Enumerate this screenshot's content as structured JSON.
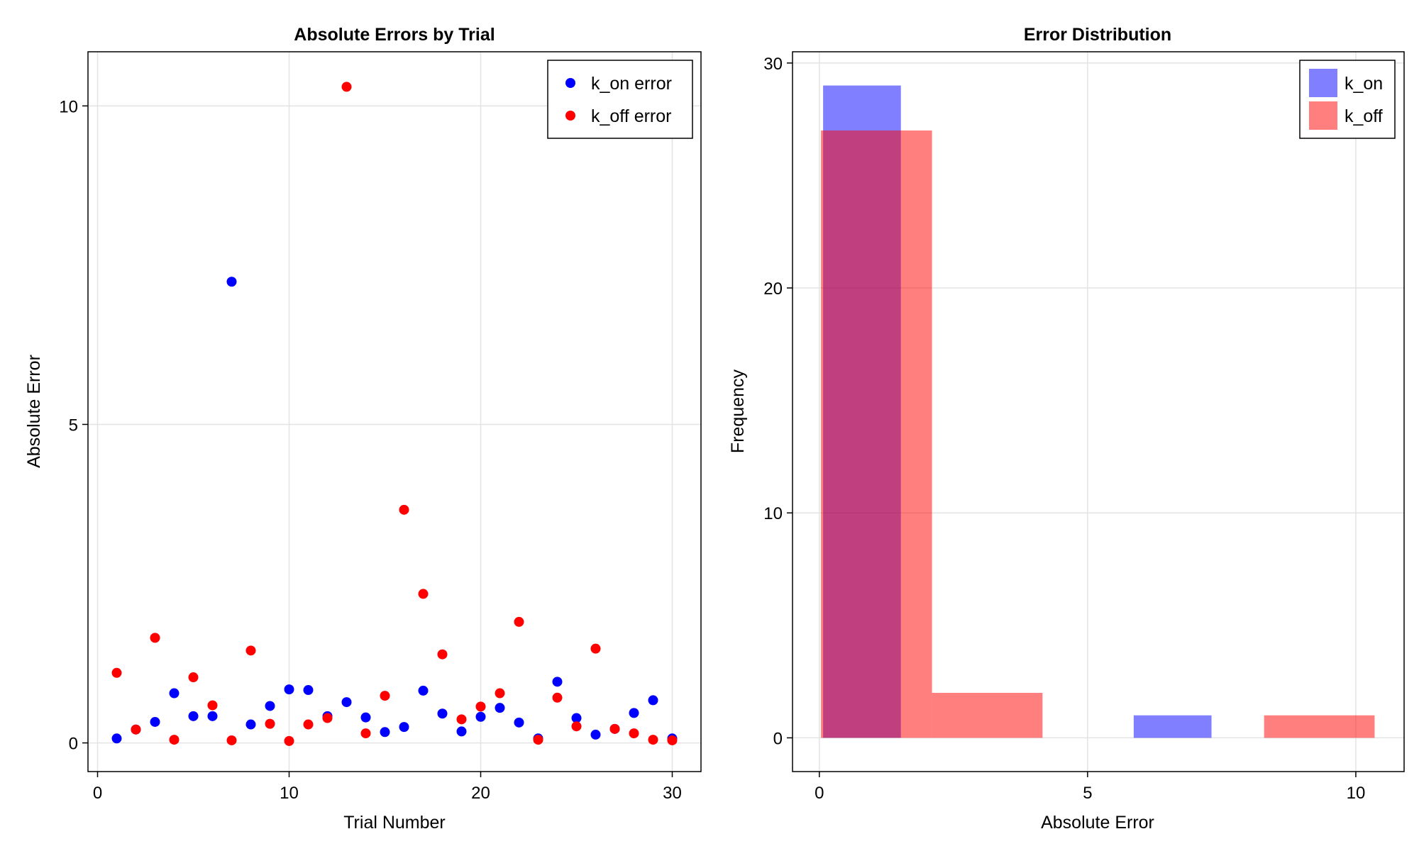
{
  "chart_data": [
    {
      "type": "scatter",
      "title": "Absolute Errors by Trial",
      "xlabel": "Trial Number",
      "ylabel": "Absolute Error",
      "xlim": [
        -0.5,
        31.5
      ],
      "ylim": [
        -0.45,
        10.85
      ],
      "xticks": [
        0,
        10,
        20,
        30
      ],
      "yticks": [
        0,
        5,
        10
      ],
      "grid": true,
      "legend_position": "top-right",
      "series": [
        {
          "name": "k_on error",
          "color": "#0000ff",
          "x": [
            1,
            2,
            3,
            4,
            5,
            6,
            7,
            8,
            9,
            10,
            11,
            12,
            13,
            14,
            15,
            16,
            17,
            18,
            19,
            20,
            21,
            22,
            23,
            24,
            25,
            26,
            27,
            28,
            29,
            30
          ],
          "y": [
            0.07,
            0.21,
            0.33,
            0.78,
            0.42,
            0.42,
            7.24,
            0.29,
            0.58,
            0.84,
            0.83,
            0.42,
            0.64,
            0.4,
            0.17,
            0.25,
            0.82,
            0.46,
            0.18,
            0.41,
            0.55,
            0.32,
            0.07,
            0.96,
            0.39,
            0.13,
            0.22,
            0.47,
            0.67,
            0.07
          ]
        },
        {
          "name": "k_off error",
          "color": "#ff0000",
          "x": [
            1,
            2,
            3,
            4,
            5,
            6,
            7,
            8,
            9,
            10,
            11,
            12,
            13,
            14,
            15,
            16,
            17,
            18,
            19,
            20,
            21,
            22,
            23,
            24,
            25,
            26,
            27,
            28,
            29,
            30
          ],
          "y": [
            1.1,
            0.21,
            1.65,
            0.05,
            1.03,
            0.59,
            0.04,
            1.45,
            0.3,
            0.03,
            0.29,
            0.39,
            10.3,
            0.15,
            0.74,
            3.66,
            2.34,
            1.39,
            0.37,
            0.57,
            0.78,
            1.9,
            0.05,
            0.71,
            0.26,
            1.48,
            0.22,
            0.15,
            0.05,
            0.04
          ]
        }
      ]
    },
    {
      "type": "bar",
      "subtype": "histogram",
      "title": "Error Distribution",
      "xlabel": "Absolute Error",
      "ylabel": "Frequency",
      "xlim": [
        -0.5,
        10.9
      ],
      "ylim": [
        -1.5,
        30.5
      ],
      "xticks": [
        0,
        5,
        10
      ],
      "yticks": [
        0,
        10,
        20,
        30
      ],
      "grid": true,
      "legend_position": "top-right",
      "series": [
        {
          "name": "k_on",
          "color": "#0000ff",
          "opacity": 0.5,
          "bins": [
            {
              "x0": 0.07,
              "x1": 1.52,
              "count": 29
            },
            {
              "x0": 5.86,
              "x1": 7.31,
              "count": 1
            }
          ]
        },
        {
          "name": "k_off",
          "color": "#ff0000",
          "opacity": 0.5,
          "bins": [
            {
              "x0": 0.03,
              "x1": 2.1,
              "count": 27
            },
            {
              "x0": 2.1,
              "x1": 4.16,
              "count": 2
            },
            {
              "x0": 8.29,
              "x1": 10.35,
              "count": 1
            }
          ]
        }
      ]
    }
  ]
}
